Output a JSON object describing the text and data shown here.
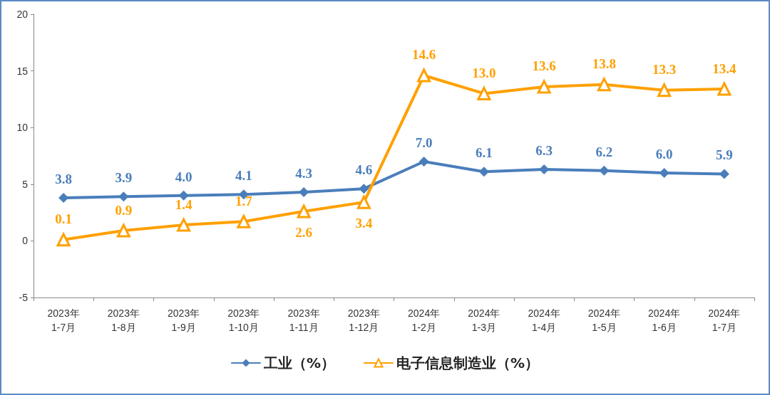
{
  "chart_data": {
    "type": "line",
    "categories": [
      "2023年\n1-7月",
      "2023年\n1-8月",
      "2023年\n1-9月",
      "2023年\n1-10月",
      "2023年\n1-11月",
      "2023年\n1-12月",
      "2024年\n1-2月",
      "2024年\n1-3月",
      "2024年\n1-4月",
      "2024年\n1-5月",
      "2024年\n1-6月",
      "2024年\n1-7月"
    ],
    "series": [
      {
        "name": "工业（%）",
        "color": "#4a7ebb",
        "marker": "diamond",
        "values": [
          3.8,
          3.9,
          4.0,
          4.1,
          4.3,
          4.6,
          7.0,
          6.1,
          6.3,
          6.2,
          6.0,
          5.9
        ],
        "value_labels": [
          "3.8",
          "3.9",
          "4.0",
          "4.1",
          "4.3",
          "4.6",
          "7.0",
          "6.1",
          "6.3",
          "6.2",
          "6.0",
          "5.9"
        ]
      },
      {
        "name": "电子信息制造业（%）",
        "color": "#ffa000",
        "marker": "triangle",
        "values": [
          0.1,
          0.9,
          1.4,
          1.7,
          2.6,
          3.4,
          14.6,
          13.0,
          13.6,
          13.8,
          13.3,
          13.4
        ],
        "value_labels": [
          "0.1",
          "0.9",
          "1.4",
          "1.7",
          "2.6",
          "3.4",
          "14.6",
          "13.0",
          "13.6",
          "13.8",
          "13.3",
          "13.4"
        ]
      }
    ],
    "ylim": [
      -5,
      20
    ],
    "yticks": [
      -5,
      0,
      5,
      10,
      15,
      20
    ],
    "grid": false,
    "legend": "bottom",
    "line_style": "solid"
  }
}
